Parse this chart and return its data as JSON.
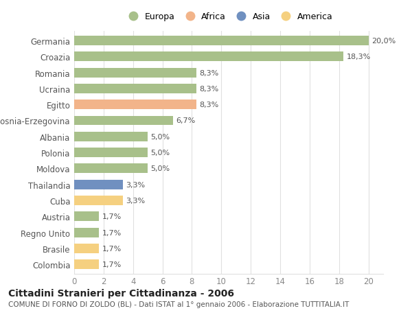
{
  "countries": [
    "Germania",
    "Croazia",
    "Romania",
    "Ucraina",
    "Egitto",
    "Bosnia-Erzegovina",
    "Albania",
    "Polonia",
    "Moldova",
    "Thailandia",
    "Cuba",
    "Austria",
    "Regno Unito",
    "Brasile",
    "Colombia"
  ],
  "values": [
    20.0,
    18.3,
    8.3,
    8.3,
    8.3,
    6.7,
    5.0,
    5.0,
    5.0,
    3.3,
    3.3,
    1.7,
    1.7,
    1.7,
    1.7
  ],
  "labels": [
    "20,0%",
    "18,3%",
    "8,3%",
    "8,3%",
    "8,3%",
    "6,7%",
    "5,0%",
    "5,0%",
    "5,0%",
    "3,3%",
    "3,3%",
    "1,7%",
    "1,7%",
    "1,7%",
    "1,7%"
  ],
  "continents": [
    "Europa",
    "Europa",
    "Europa",
    "Europa",
    "Africa",
    "Europa",
    "Europa",
    "Europa",
    "Europa",
    "Asia",
    "America",
    "Europa",
    "Europa",
    "America",
    "America"
  ],
  "continent_colors": {
    "Europa": "#a8c08a",
    "Africa": "#f2b48a",
    "Asia": "#7090c0",
    "America": "#f5d080"
  },
  "legend_items": [
    "Europa",
    "Africa",
    "Asia",
    "America"
  ],
  "legend_colors": [
    "#a8c08a",
    "#f2b48a",
    "#7090c0",
    "#f5d080"
  ],
  "title": "Cittadini Stranieri per Cittadinanza - 2006",
  "subtitle": "COMUNE DI FORNO DI ZOLDO (BL) - Dati ISTAT al 1° gennaio 2006 - Elaborazione TUTTITALIA.IT",
  "xlim": [
    0,
    21
  ],
  "xticks": [
    0,
    2,
    4,
    6,
    8,
    10,
    12,
    14,
    16,
    18,
    20
  ],
  "background_color": "#ffffff",
  "grid_color": "#e0e0e0",
  "bar_height": 0.6,
  "label_fontsize": 8,
  "tick_fontsize": 8.5,
  "title_fontsize": 10,
  "subtitle_fontsize": 7.5
}
